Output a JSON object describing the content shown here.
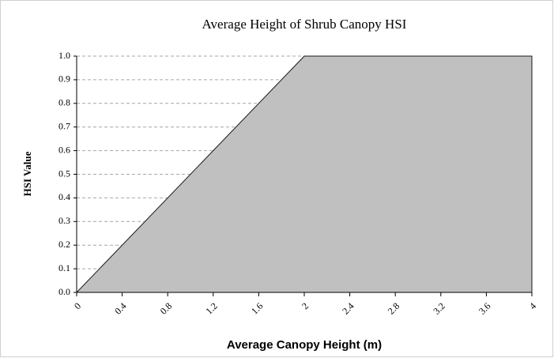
{
  "chart_data": {
    "type": "area",
    "title": "Average Height of Shrub Canopy HSI",
    "x_label": "Average Canopy Height (m)",
    "y_label": "HSI Value",
    "x": [
      0,
      2,
      4
    ],
    "values": [
      0,
      1,
      1
    ],
    "color": "#c0c0c0",
    "xlim": [
      0,
      4
    ],
    "xticks": [
      0,
      0.4,
      0.8,
      1.2,
      1.6,
      2,
      2.4,
      2.8,
      3.2,
      3.6,
      4
    ],
    "ylim": [
      0,
      1
    ],
    "yticks": [
      {
        "value": 0,
        "label": "0.0"
      },
      0.1,
      0.2,
      0.3,
      0.4,
      0.5,
      0.6,
      0.7,
      0.8,
      0.9,
      {
        "value": 1,
        "label": "1.0"
      }
    ],
    "grid": true
  }
}
